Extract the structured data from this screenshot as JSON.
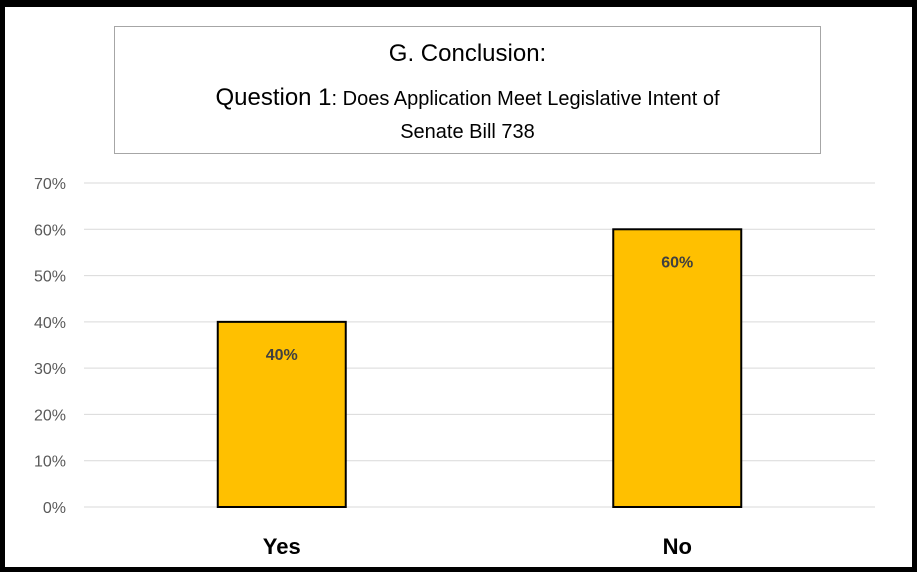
{
  "chart_data": {
    "type": "bar",
    "title": {
      "line1": "G. Conclusion:",
      "line2_prefix": "Question  1",
      "line2_suffix": ": Does Application Meet Legislative Intent of",
      "line3": "Senate Bill 738"
    },
    "categories": [
      "Yes",
      "No"
    ],
    "values": [
      40,
      60
    ],
    "value_labels": [
      "40%",
      "60%"
    ],
    "ylim": [
      0,
      70
    ],
    "yticks": [
      0,
      10,
      20,
      30,
      40,
      50,
      60,
      70
    ],
    "ytick_labels": [
      "0%",
      "10%",
      "20%",
      "30%",
      "40%",
      "50%",
      "60%",
      "70%"
    ],
    "xlabel": "",
    "ylabel": "",
    "grid": true,
    "legend": "none",
    "colors": {
      "bar_fill": "#ffc000",
      "bar_stroke": "#000000",
      "gridline": "#d9d9d9",
      "tick_label": "#595959",
      "data_label": "#404040",
      "frame": "#000000"
    }
  }
}
